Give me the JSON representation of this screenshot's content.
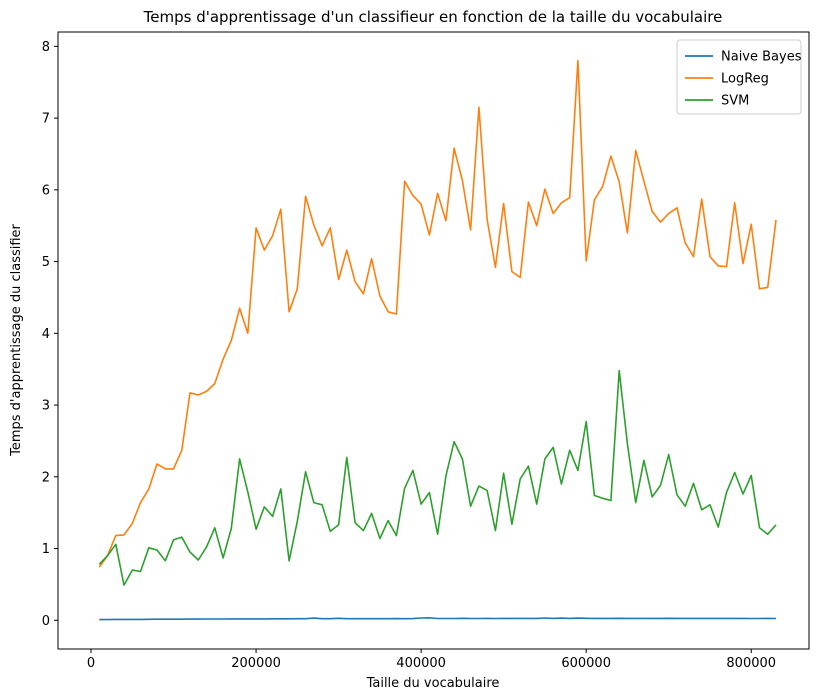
{
  "chart_data": {
    "type": "line",
    "title": "Temps d'apprentissage d'un classifieur en fonction de la taille du vocabulaire",
    "xlabel": "Taille du vocabulaire",
    "ylabel": "Temps d'apprentissage du classifier",
    "xlim": [
      -40000,
      870000
    ],
    "ylim": [
      -0.4,
      8.2
    ],
    "xticks": [
      0,
      200000,
      400000,
      600000,
      800000
    ],
    "xtick_labels": [
      "0",
      "200000",
      "400000",
      "600000",
      "800000"
    ],
    "yticks": [
      0,
      1,
      2,
      3,
      4,
      5,
      6,
      7,
      8
    ],
    "ytick_labels": [
      "0",
      "1",
      "2",
      "3",
      "4",
      "5",
      "6",
      "7",
      "8"
    ],
    "grid": false,
    "legend": "top-right",
    "x": [
      10000,
      20000,
      30000,
      40000,
      50000,
      60000,
      70000,
      80000,
      90000,
      100000,
      110000,
      120000,
      130000,
      140000,
      150000,
      160000,
      170000,
      180000,
      190000,
      200000,
      210000,
      220000,
      230000,
      240000,
      250000,
      260000,
      270000,
      280000,
      290000,
      300000,
      310000,
      320000,
      330000,
      340000,
      350000,
      360000,
      370000,
      380000,
      390000,
      400000,
      410000,
      420000,
      430000,
      440000,
      450000,
      460000,
      470000,
      480000,
      490000,
      500000,
      510000,
      520000,
      530000,
      540000,
      550000,
      560000,
      570000,
      580000,
      590000,
      600000,
      610000,
      620000,
      630000,
      640000,
      650000,
      660000,
      670000,
      680000,
      690000,
      700000,
      710000,
      720000,
      730000,
      740000,
      750000,
      760000,
      770000,
      780000,
      790000,
      800000,
      810000,
      820000,
      830000
    ],
    "series": [
      {
        "name": "Naive Bayes",
        "color": "#1f77b4",
        "values": [
          0.01,
          0.01,
          0.012,
          0.012,
          0.013,
          0.013,
          0.014,
          0.015,
          0.015,
          0.016,
          0.016,
          0.017,
          0.017,
          0.018,
          0.018,
          0.018,
          0.019,
          0.019,
          0.02,
          0.02,
          0.02,
          0.021,
          0.021,
          0.021,
          0.022,
          0.022,
          0.03,
          0.022,
          0.023,
          0.028,
          0.023,
          0.022,
          0.022,
          0.022,
          0.023,
          0.023,
          0.024,
          0.023,
          0.024,
          0.032,
          0.035,
          0.025,
          0.025,
          0.025,
          0.028,
          0.025,
          0.025,
          0.026,
          0.025,
          0.026,
          0.026,
          0.026,
          0.027,
          0.027,
          0.032,
          0.027,
          0.03,
          0.026,
          0.03,
          0.028,
          0.026,
          0.026,
          0.027,
          0.028,
          0.026,
          0.026,
          0.026,
          0.026,
          0.026,
          0.028,
          0.026,
          0.026,
          0.026,
          0.026,
          0.026,
          0.026,
          0.026,
          0.026,
          0.026,
          0.025,
          0.025,
          0.026,
          0.025
        ]
      },
      {
        "name": "LogReg",
        "color": "#ff7f0e",
        "values": [
          0.74,
          0.9,
          1.18,
          1.19,
          1.35,
          1.64,
          1.83,
          2.18,
          2.11,
          2.11,
          2.37,
          3.17,
          3.14,
          3.19,
          3.3,
          3.64,
          3.9,
          4.35,
          4.0,
          5.47,
          5.16,
          5.36,
          5.73,
          4.3,
          4.62,
          5.91,
          5.51,
          5.22,
          5.47,
          4.75,
          5.16,
          4.72,
          4.55,
          5.04,
          4.52,
          4.3,
          4.27,
          6.12,
          5.92,
          5.8,
          5.37,
          5.95,
          5.57,
          6.58,
          6.13,
          5.44,
          7.15,
          5.59,
          4.92,
          5.81,
          4.86,
          4.78,
          5.83,
          5.5,
          6.01,
          5.67,
          5.82,
          5.89,
          7.8,
          5.01,
          5.86,
          6.05,
          6.47,
          6.11,
          5.4,
          6.55,
          6.12,
          5.7,
          5.55,
          5.67,
          5.75,
          5.26,
          5.07,
          5.87,
          5.07,
          4.94,
          4.93,
          5.82,
          4.97,
          5.52,
          4.62,
          4.64,
          5.58
        ]
      },
      {
        "name": "SVM",
        "color": "#2ca02c",
        "values": [
          0.78,
          0.9,
          1.06,
          0.49,
          0.7,
          0.68,
          1.01,
          0.98,
          0.83,
          1.12,
          1.16,
          0.95,
          0.84,
          1.02,
          1.29,
          0.87,
          1.28,
          2.25,
          1.79,
          1.27,
          1.58,
          1.45,
          1.83,
          0.83,
          1.38,
          2.07,
          1.64,
          1.61,
          1.24,
          1.33,
          2.27,
          1.36,
          1.25,
          1.49,
          1.14,
          1.39,
          1.18,
          1.84,
          2.09,
          1.62,
          1.78,
          1.2,
          2.01,
          2.49,
          2.25,
          1.59,
          1.87,
          1.81,
          1.25,
          2.05,
          1.34,
          1.97,
          2.15,
          1.62,
          2.25,
          2.41,
          1.9,
          2.37,
          2.09,
          2.77,
          1.74,
          1.7,
          1.67,
          3.48,
          2.46,
          1.64,
          2.23,
          1.72,
          1.88,
          2.31,
          1.75,
          1.59,
          1.91,
          1.54,
          1.61,
          1.3,
          1.78,
          2.06,
          1.76,
          2.02,
          1.29,
          1.2,
          1.33
        ]
      }
    ]
  }
}
